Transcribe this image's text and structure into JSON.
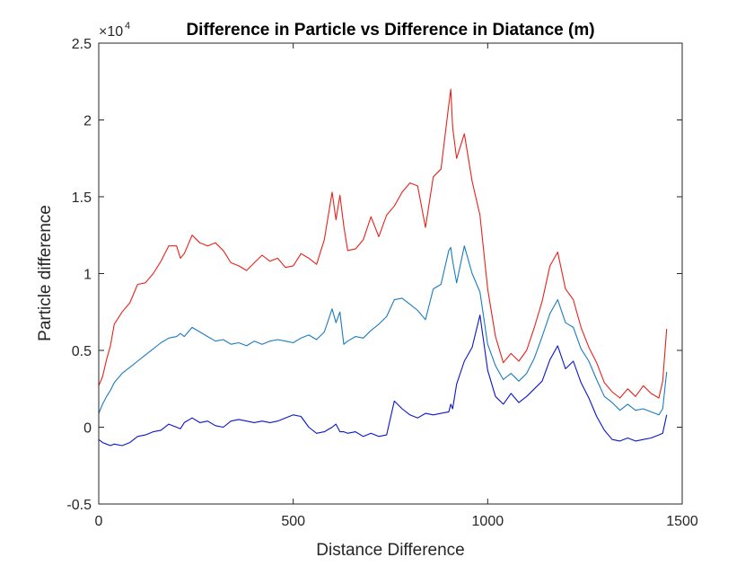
{
  "chart_data": {
    "type": "line",
    "title": "Difference in Particle vs Difference in Diatance (m)",
    "xlabel": "Distance Difference",
    "ylabel": "Particle difference",
    "xlim": [
      0,
      1500
    ],
    "ylim": [
      -5000,
      25000
    ],
    "x_ticks": [
      0,
      500,
      1000,
      1500
    ],
    "x_tick_labels": [
      "0",
      "500",
      "1000",
      "1500"
    ],
    "y_ticks": [
      -5000,
      0,
      5000,
      10000,
      15000,
      20000,
      25000
    ],
    "y_tick_labels": [
      "-0.5",
      "0",
      "0.5",
      "1",
      "1.5",
      "2",
      "2.5"
    ],
    "y_exponent_label": "×10",
    "y_exponent_power": "4",
    "grid": false,
    "x": [
      0,
      10,
      20,
      30,
      40,
      60,
      80,
      100,
      120,
      140,
      160,
      180,
      200,
      210,
      220,
      240,
      260,
      280,
      300,
      320,
      340,
      360,
      380,
      400,
      420,
      440,
      460,
      480,
      500,
      520,
      540,
      560,
      580,
      600,
      610,
      620,
      630,
      640,
      660,
      680,
      700,
      720,
      740,
      760,
      780,
      800,
      820,
      840,
      860,
      880,
      900,
      905,
      910,
      920,
      940,
      960,
      980,
      1000,
      1020,
      1040,
      1060,
      1080,
      1100,
      1120,
      1140,
      1160,
      1180,
      1200,
      1220,
      1240,
      1260,
      1280,
      1300,
      1320,
      1340,
      1360,
      1380,
      1400,
      1420,
      1440,
      1450,
      1460
    ],
    "series": [
      {
        "color": "#e8221b",
        "values": [
          2700,
          3300,
          4400,
          5300,
          6700,
          7500,
          8100,
          9300,
          9400,
          10000,
          10800,
          11800,
          11800,
          11000,
          11300,
          12500,
          12000,
          11800,
          12000,
          11500,
          10700,
          10500,
          10200,
          10700,
          11200,
          10800,
          11000,
          10400,
          10500,
          11300,
          11000,
          10600,
          12200,
          15300,
          13500,
          15100,
          13100,
          11500,
          11600,
          12200,
          13700,
          12400,
          13800,
          14400,
          15300,
          15900,
          15700,
          13000,
          16300,
          16800,
          21000,
          22000,
          19500,
          17500,
          19100,
          16000,
          13800,
          9000,
          5900,
          4200,
          4800,
          4300,
          5000,
          6500,
          8200,
          10500,
          11400,
          9000,
          8300,
          6500,
          5200,
          4200,
          2900,
          2300,
          1900,
          2500,
          2000,
          2700,
          2200,
          1900,
          3000,
          6400
        ]
      },
      {
        "color": "#1a7cbf",
        "values": [
          900,
          1500,
          2000,
          2400,
          2900,
          3500,
          3900,
          4300,
          4700,
          5100,
          5500,
          5800,
          5900,
          6100,
          5900,
          6500,
          6200,
          5900,
          5600,
          5700,
          5400,
          5500,
          5300,
          5600,
          5400,
          5600,
          5700,
          5600,
          5500,
          5800,
          6000,
          5700,
          6200,
          7700,
          6800,
          7500,
          5400,
          5600,
          5900,
          5800,
          6300,
          6700,
          7200,
          8300,
          8400,
          8000,
          7600,
          7000,
          9000,
          9300,
          11500,
          11700,
          10800,
          9400,
          11800,
          10000,
          8800,
          5400,
          4000,
          3100,
          3500,
          3000,
          3500,
          4500,
          5900,
          7400,
          8300,
          6800,
          6500,
          5100,
          4300,
          3100,
          2000,
          1600,
          1100,
          1500,
          1100,
          1200,
          1000,
          800,
          1200,
          3600
        ]
      },
      {
        "color": "#0a16c8",
        "values": [
          -800,
          -1000,
          -1100,
          -1200,
          -1100,
          -1200,
          -1000,
          -600,
          -500,
          -300,
          -200,
          200,
          0,
          -100,
          300,
          600,
          300,
          400,
          100,
          0,
          400,
          500,
          400,
          300,
          400,
          300,
          400,
          600,
          800,
          700,
          0,
          -400,
          -300,
          0,
          200,
          -300,
          -300,
          -400,
          -300,
          -600,
          -400,
          -600,
          -500,
          1700,
          1200,
          800,
          600,
          900,
          800,
          900,
          1000,
          1500,
          1200,
          2800,
          4300,
          5200,
          7300,
          3700,
          2000,
          1500,
          2200,
          1600,
          2000,
          2500,
          3000,
          4400,
          5300,
          3800,
          4300,
          2900,
          1900,
          700,
          -200,
          -800,
          -900,
          -700,
          -900,
          -800,
          -700,
          -500,
          -400,
          800
        ]
      }
    ]
  }
}
